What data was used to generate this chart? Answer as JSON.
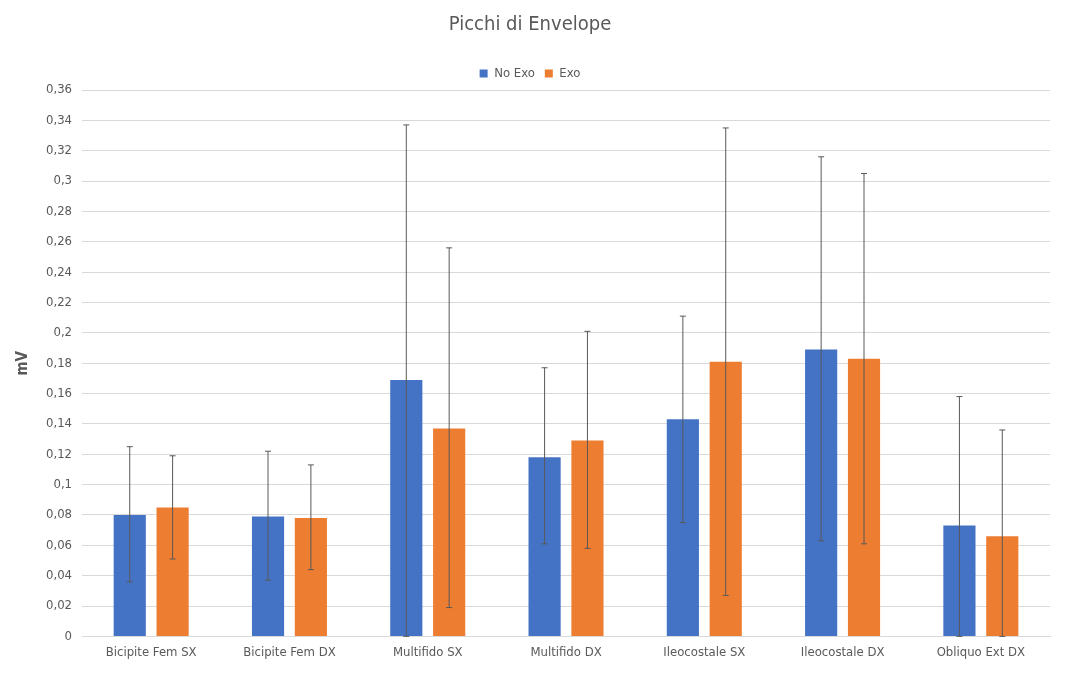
{
  "chart_data": {
    "type": "bar",
    "title": "Picchi di Envelope",
    "ylabel": "mV",
    "legend": "top",
    "grid": "y",
    "categories": [
      "Bicipite Fem SX",
      "Bicipite Fem DX",
      "Multifido SX",
      "Multifido DX",
      "Ileocostale SX",
      "Ileocostale DX",
      "Obliquo Ext DX"
    ],
    "series": [
      {
        "name": "No Exo",
        "color": "#4472c4",
        "values": [
          0.08,
          0.079,
          0.169,
          0.118,
          0.143,
          0.189,
          0.073
        ],
        "errors": [
          [
            0.036,
            0.125
          ],
          [
            0.037,
            0.122
          ],
          [
            0,
            0.337
          ],
          [
            0.061,
            0.177
          ],
          [
            0.075,
            0.211
          ],
          [
            0.063,
            0.316
          ],
          [
            0,
            0.158
          ]
        ]
      },
      {
        "name": "Exo",
        "color": "#ed7d31",
        "values": [
          0.085,
          0.078,
          0.137,
          0.129,
          0.181,
          0.183,
          0.066
        ],
        "errors": [
          [
            0.051,
            0.119
          ],
          [
            0.044,
            0.113
          ],
          [
            0.019,
            0.256
          ],
          [
            0.058,
            0.201
          ],
          [
            0.027,
            0.335
          ],
          [
            0.061,
            0.305
          ],
          [
            0,
            0.136
          ]
        ]
      }
    ],
    "ylim": [
      0,
      0.36
    ],
    "yticks": [
      {
        "value": 0,
        "label": "0"
      },
      {
        "value": 0.02,
        "label": "0,02"
      },
      {
        "value": 0.04,
        "label": "0,04"
      },
      {
        "value": 0.06,
        "label": "0,06"
      },
      {
        "value": 0.08,
        "label": "0,08"
      },
      {
        "value": 0.1,
        "label": "0,1"
      },
      {
        "value": 0.12,
        "label": "0,12"
      },
      {
        "value": 0.14,
        "label": "0,14"
      },
      {
        "value": 0.16,
        "label": "0,16"
      },
      {
        "value": 0.18,
        "label": "0,18"
      },
      {
        "value": 0.2,
        "label": "0,2"
      },
      {
        "value": 0.22,
        "label": "0,22"
      },
      {
        "value": 0.24,
        "label": "0,24"
      },
      {
        "value": 0.26,
        "label": "0,26"
      },
      {
        "value": 0.28,
        "label": "0,28"
      },
      {
        "value": 0.3,
        "label": "0,3"
      },
      {
        "value": 0.32,
        "label": "0,32"
      },
      {
        "value": 0.34,
        "label": "0,34"
      },
      {
        "value": 0.36,
        "label": "0,36"
      }
    ]
  }
}
